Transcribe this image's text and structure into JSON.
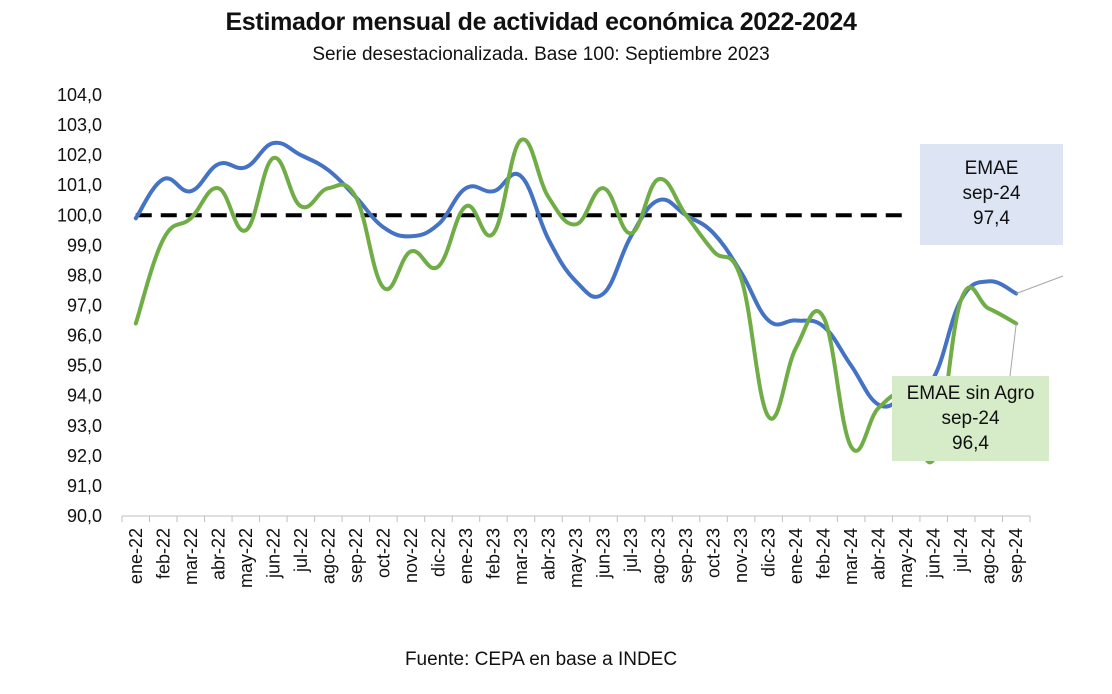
{
  "chart_data": {
    "type": "line",
    "title": "Estimador mensual de actividad económica 2022-2024",
    "subtitle": "Serie desestacionalizada. Base 100: Septiembre 2023",
    "source": "Fuente: CEPA en base a INDEC",
    "xlabel": "",
    "ylabel": "",
    "ylim": [
      90,
      104
    ],
    "yticks": [
      "90,0",
      "91,0",
      "92,0",
      "93,0",
      "94,0",
      "95,0",
      "96,0",
      "97,0",
      "98,0",
      "99,0",
      "100,0",
      "101,0",
      "102,0",
      "103,0",
      "104,0"
    ],
    "categories": [
      "ene-22",
      "feb-22",
      "mar-22",
      "abr-22",
      "may-22",
      "jun-22",
      "jul-22",
      "ago-22",
      "sep-22",
      "oct-22",
      "nov-22",
      "dic-22",
      "ene-23",
      "feb-23",
      "mar-23",
      "abr-23",
      "may-23",
      "jun-23",
      "jul-23",
      "ago-23",
      "sep-23",
      "oct-23",
      "nov-23",
      "dic-23",
      "ene-24",
      "feb-24",
      "mar-24",
      "abr-24",
      "may-24",
      "jun-24",
      "jul-24",
      "ago-24",
      "sep-24"
    ],
    "series": [
      {
        "name": "EMAE",
        "color": "#4472c4",
        "values": [
          99.9,
          101.2,
          100.8,
          101.7,
          101.6,
          102.4,
          102.0,
          101.5,
          100.6,
          99.6,
          99.3,
          99.7,
          100.9,
          100.8,
          101.3,
          99.2,
          97.8,
          97.4,
          99.3,
          100.5,
          100.0,
          99.4,
          98.1,
          96.5,
          96.5,
          96.3,
          95.0,
          93.7,
          94.0,
          94.6,
          97.2,
          97.8,
          97.4
        ]
      },
      {
        "name": "EMAE sin Agro",
        "color": "#70ad47",
        "values": [
          96.4,
          99.2,
          99.9,
          100.9,
          99.5,
          101.9,
          100.3,
          100.9,
          100.6,
          97.6,
          98.8,
          98.3,
          100.3,
          99.4,
          102.5,
          100.6,
          99.7,
          100.9,
          99.4,
          101.2,
          100.0,
          98.8,
          97.9,
          93.3,
          95.6,
          96.6,
          92.3,
          93.6,
          93.9,
          91.9,
          97.2,
          96.9,
          96.4
        ]
      }
    ],
    "reference_line": {
      "value": 100,
      "color": "#000000",
      "style": "dashed"
    },
    "callouts": [
      {
        "series": "EMAE",
        "name": "EMAE",
        "period": "sep-24",
        "value": "97,4",
        "color": "#dde4f3"
      },
      {
        "series": "EMAE sin Agro",
        "name": "EMAE sin Agro",
        "period": "sep-24",
        "value": "96,4",
        "color": "#d6ecc8"
      }
    ]
  }
}
